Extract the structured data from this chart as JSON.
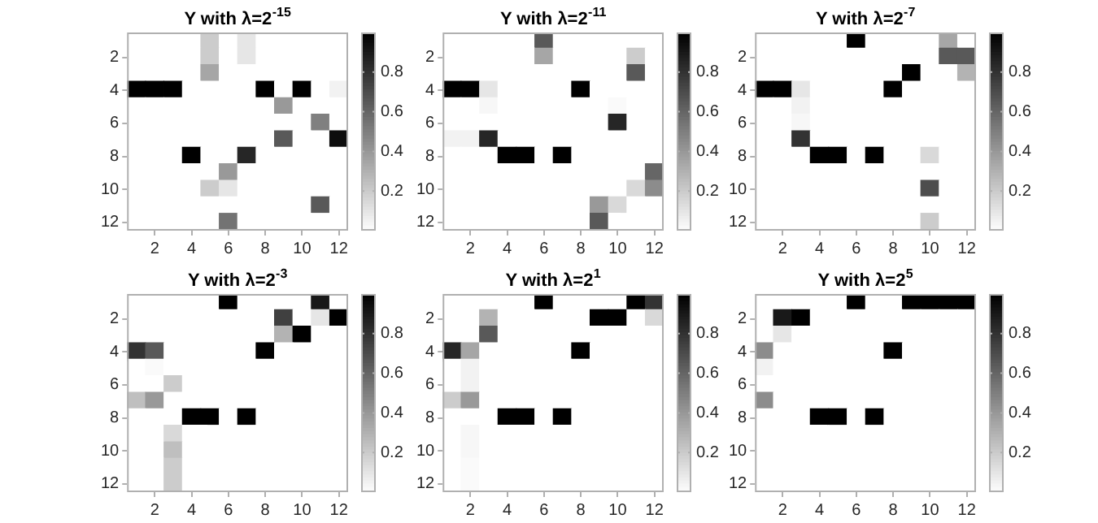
{
  "chart_data": [
    {
      "type": "heatmap",
      "title": "Y with λ=2$^{-15}$",
      "categories": [
        null,
        "2",
        null,
        "4",
        null,
        "6",
        null,
        "8",
        null,
        "10",
        null,
        "12"
      ],
      "y_categories": [
        null,
        "2",
        null,
        "4",
        null,
        "6",
        null,
        "8",
        null,
        "10",
        null,
        "12"
      ],
      "clim": [
        0,
        1
      ],
      "cticks": [
        0.2,
        0.4,
        0.6,
        0.8
      ],
      "cells": [
        [
          0,
          0,
          0,
          0,
          0.2,
          0,
          0.1,
          0,
          0,
          0,
          0,
          0
        ],
        [
          0,
          0,
          0,
          0,
          0.2,
          0,
          0.1,
          0,
          0,
          0,
          0,
          0
        ],
        [
          0,
          0,
          0,
          0,
          0.35,
          0,
          0,
          0,
          0,
          0,
          0,
          0
        ],
        [
          1,
          1,
          1,
          0,
          0,
          0,
          0,
          1,
          0,
          1,
          0,
          0.05
        ],
        [
          0,
          0,
          0,
          0,
          0,
          0,
          0,
          0,
          0.4,
          0,
          0,
          0
        ],
        [
          0,
          0,
          0,
          0,
          0,
          0,
          0,
          0,
          0,
          0,
          0.5,
          0
        ],
        [
          0,
          0,
          0,
          0,
          0,
          0,
          0,
          0,
          0.65,
          0,
          0,
          0.95
        ],
        [
          0,
          0,
          0,
          1,
          0,
          0,
          0.85,
          0,
          0,
          0,
          0,
          0
        ],
        [
          0,
          0,
          0,
          0,
          0,
          0.4,
          0,
          0,
          0,
          0,
          0,
          0
        ],
        [
          0,
          0,
          0,
          0,
          0.2,
          0.1,
          0,
          0,
          0,
          0,
          0,
          0
        ],
        [
          0,
          0,
          0,
          0,
          0,
          0,
          0,
          0,
          0,
          0,
          0.65,
          0
        ],
        [
          0,
          0,
          0,
          0,
          0,
          0.55,
          0,
          0,
          0,
          0,
          0,
          0
        ]
      ]
    },
    {
      "type": "heatmap",
      "title": "Y with λ=2$^{-11}$",
      "categories": [
        null,
        "2",
        null,
        "4",
        null,
        "6",
        null,
        "8",
        null,
        "10",
        null,
        "12"
      ],
      "y_categories": [
        null,
        "2",
        null,
        "4",
        null,
        "6",
        null,
        "8",
        null,
        "10",
        null,
        "12"
      ],
      "clim": [
        0,
        1
      ],
      "cticks": [
        0.2,
        0.4,
        0.6,
        0.8
      ],
      "cells": [
        [
          0,
          0,
          0,
          0,
          0,
          0.65,
          0,
          0,
          0,
          0,
          0,
          0
        ],
        [
          0,
          0,
          0,
          0,
          0,
          0.35,
          0,
          0,
          0,
          0,
          0.2,
          0
        ],
        [
          0,
          0,
          0,
          0,
          0,
          0,
          0,
          0,
          0,
          0,
          0.65,
          0
        ],
        [
          1,
          1,
          0.1,
          0,
          0,
          0,
          0,
          1,
          0,
          0,
          0,
          0
        ],
        [
          0,
          0,
          0.03,
          0,
          0,
          0,
          0,
          0,
          0,
          0.02,
          0,
          0
        ],
        [
          0,
          0,
          0,
          0,
          0,
          0,
          0,
          0,
          0,
          0.85,
          0,
          0
        ],
        [
          0.05,
          0.05,
          0.85,
          0,
          0,
          0,
          0,
          0,
          0,
          0,
          0,
          0
        ],
        [
          0,
          0,
          0,
          1,
          1,
          0,
          1,
          0,
          0,
          0,
          0,
          0
        ],
        [
          0,
          0,
          0,
          0,
          0,
          0,
          0,
          0,
          0,
          0,
          0,
          0.6
        ],
        [
          0,
          0,
          0,
          0,
          0,
          0,
          0,
          0,
          0,
          0,
          0.15,
          0.45
        ],
        [
          0,
          0,
          0,
          0,
          0,
          0,
          0,
          0,
          0.4,
          0.15,
          0,
          0
        ],
        [
          0,
          0,
          0,
          0,
          0,
          0,
          0,
          0,
          0.65,
          0,
          0,
          0
        ]
      ]
    },
    {
      "type": "heatmap",
      "title": "Y with λ=2$^{-7}$",
      "categories": [
        null,
        "2",
        null,
        "4",
        null,
        "6",
        null,
        "8",
        null,
        "10",
        null,
        "12"
      ],
      "y_categories": [
        null,
        "2",
        null,
        "4",
        null,
        "6",
        null,
        "8",
        null,
        "10",
        null,
        "12"
      ],
      "clim": [
        0,
        1
      ],
      "cticks": [
        0.2,
        0.4,
        0.6,
        0.8
      ],
      "cells": [
        [
          0,
          0,
          0,
          0,
          0,
          1,
          0,
          0,
          0,
          0,
          0.35,
          0
        ],
        [
          0,
          0,
          0,
          0,
          0,
          0,
          0,
          0,
          0,
          0,
          0.65,
          0.65
        ],
        [
          0,
          0,
          0,
          0,
          0,
          0,
          0,
          0,
          1,
          0,
          0,
          0.3
        ],
        [
          1,
          1,
          0.1,
          0,
          0,
          0,
          0,
          1,
          0,
          0,
          0,
          0
        ],
        [
          0,
          0,
          0.05,
          0,
          0,
          0,
          0,
          0,
          0,
          0,
          0,
          0
        ],
        [
          0,
          0,
          0.03,
          0,
          0,
          0,
          0,
          0,
          0,
          0,
          0,
          0
        ],
        [
          0,
          0,
          0.8,
          0,
          0,
          0,
          0,
          0,
          0,
          0,
          0,
          0
        ],
        [
          0,
          0,
          0,
          1,
          1,
          0,
          1,
          0,
          0,
          0.15,
          0,
          0
        ],
        [
          0,
          0,
          0,
          0,
          0,
          0,
          0,
          0,
          0,
          0,
          0,
          0
        ],
        [
          0,
          0,
          0,
          0,
          0,
          0,
          0,
          0,
          0,
          0.7,
          0,
          0
        ],
        [
          0,
          0,
          0,
          0,
          0,
          0,
          0,
          0,
          0,
          0,
          0,
          0
        ],
        [
          0,
          0,
          0,
          0,
          0,
          0,
          0,
          0,
          0,
          0.2,
          0,
          0
        ]
      ]
    },
    {
      "type": "heatmap",
      "title": "Y with λ=2$^{-3}$",
      "categories": [
        null,
        "2",
        null,
        "4",
        null,
        "6",
        null,
        "8",
        null,
        "10",
        null,
        "12"
      ],
      "y_categories": [
        null,
        "2",
        null,
        "4",
        null,
        "6",
        null,
        "8",
        null,
        "10",
        null,
        "12"
      ],
      "clim": [
        0,
        1
      ],
      "cticks": [
        0.2,
        0.4,
        0.6,
        0.8
      ],
      "cells": [
        [
          0,
          0,
          0,
          0,
          0,
          1,
          0,
          0,
          0,
          0,
          0.9,
          0
        ],
        [
          0,
          0,
          0,
          0,
          0,
          0,
          0,
          0,
          0.75,
          0,
          0.1,
          1
        ],
        [
          0,
          0,
          0,
          0,
          0,
          0,
          0,
          0,
          0.3,
          1,
          0,
          0
        ],
        [
          0.8,
          0.65,
          0,
          0,
          0,
          0,
          0,
          1,
          0,
          0,
          0,
          0
        ],
        [
          0,
          0.02,
          0,
          0,
          0,
          0,
          0,
          0,
          0,
          0,
          0,
          0
        ],
        [
          0,
          0,
          0.2,
          0,
          0,
          0,
          0,
          0,
          0,
          0,
          0,
          0
        ],
        [
          0.25,
          0.4,
          0,
          0,
          0,
          0,
          0,
          0,
          0,
          0,
          0,
          0
        ],
        [
          0,
          0,
          0,
          1,
          1,
          0,
          1,
          0,
          0,
          0,
          0,
          0
        ],
        [
          0,
          0,
          0.15,
          0,
          0,
          0,
          0,
          0,
          0,
          0,
          0,
          0
        ],
        [
          0,
          0,
          0.25,
          0,
          0,
          0,
          0,
          0,
          0,
          0,
          0,
          0
        ],
        [
          0,
          0,
          0.2,
          0,
          0,
          0,
          0,
          0,
          0,
          0,
          0,
          0
        ],
        [
          0,
          0,
          0.2,
          0,
          0,
          0,
          0,
          0,
          0,
          0,
          0,
          0
        ]
      ]
    },
    {
      "type": "heatmap",
      "title": "Y with λ=2$^{1}$",
      "categories": [
        null,
        "2",
        null,
        "4",
        null,
        "6",
        null,
        "8",
        null,
        "10",
        null,
        "12"
      ],
      "y_categories": [
        null,
        "2",
        null,
        "4",
        null,
        "6",
        null,
        "8",
        null,
        "10",
        null,
        "12"
      ],
      "clim": [
        0,
        1
      ],
      "cticks": [
        0.2,
        0.4,
        0.6,
        0.8
      ],
      "cells": [
        [
          0,
          0,
          0,
          0,
          0,
          1,
          0,
          0,
          0,
          0,
          1,
          0.8
        ],
        [
          0,
          0,
          0.3,
          0,
          0,
          0,
          0,
          0,
          1,
          1,
          0,
          0.15
        ],
        [
          0,
          0,
          0.65,
          0,
          0,
          0,
          0,
          0,
          0,
          0,
          0,
          0
        ],
        [
          0.85,
          0.35,
          0,
          0,
          0,
          0,
          0,
          1,
          0,
          0,
          0,
          0
        ],
        [
          0,
          0.05,
          0,
          0,
          0,
          0,
          0,
          0,
          0,
          0,
          0,
          0
        ],
        [
          0,
          0.05,
          0,
          0,
          0,
          0,
          0,
          0,
          0,
          0,
          0,
          0
        ],
        [
          0.2,
          0.4,
          0,
          0,
          0,
          0,
          0,
          0,
          0,
          0,
          0,
          0
        ],
        [
          0,
          0,
          0,
          1,
          1,
          0,
          1,
          0,
          0,
          0,
          0,
          0
        ],
        [
          0,
          0.03,
          0,
          0,
          0,
          0,
          0,
          0,
          0,
          0,
          0,
          0
        ],
        [
          0,
          0.03,
          0,
          0,
          0,
          0,
          0,
          0,
          0,
          0,
          0,
          0
        ],
        [
          0,
          0.02,
          0,
          0,
          0,
          0,
          0,
          0,
          0,
          0,
          0,
          0
        ],
        [
          0,
          0.02,
          0,
          0,
          0,
          0,
          0,
          0,
          0,
          0,
          0,
          0
        ]
      ]
    },
    {
      "type": "heatmap",
      "title": "Y with λ=2$^{5}$",
      "categories": [
        null,
        "2",
        null,
        "4",
        null,
        "6",
        null,
        "8",
        null,
        "10",
        null,
        "12"
      ],
      "y_categories": [
        null,
        "2",
        null,
        "4",
        null,
        "6",
        null,
        "8",
        null,
        "10",
        null,
        "12"
      ],
      "clim": [
        0,
        1
      ],
      "cticks": [
        0.2,
        0.4,
        0.6,
        0.8
      ],
      "cells": [
        [
          0,
          0,
          0,
          0,
          0,
          1,
          0,
          0,
          1,
          1,
          1,
          1
        ],
        [
          0,
          0.9,
          1,
          0,
          0,
          0,
          0,
          0,
          0,
          0,
          0,
          0
        ],
        [
          0,
          0.1,
          0,
          0,
          0,
          0,
          0,
          0,
          0,
          0,
          0,
          0
        ],
        [
          0.45,
          0,
          0,
          0,
          0,
          0,
          0,
          1,
          0,
          0,
          0,
          0
        ],
        [
          0.05,
          0,
          0,
          0,
          0,
          0,
          0,
          0,
          0,
          0,
          0,
          0
        ],
        [
          0,
          0,
          0,
          0,
          0,
          0,
          0,
          0,
          0,
          0,
          0,
          0
        ],
        [
          0.45,
          0,
          0,
          0,
          0,
          0,
          0,
          0,
          0,
          0,
          0,
          0
        ],
        [
          0,
          0,
          0,
          1,
          1,
          0,
          1,
          0,
          0,
          0,
          0,
          0
        ],
        [
          0,
          0,
          0,
          0,
          0,
          0,
          0,
          0,
          0,
          0,
          0,
          0
        ],
        [
          0,
          0,
          0,
          0,
          0,
          0,
          0,
          0,
          0,
          0,
          0,
          0
        ],
        [
          0,
          0,
          0,
          0,
          0,
          0,
          0,
          0,
          0,
          0,
          0,
          0
        ],
        [
          0,
          0,
          0,
          0,
          0,
          0,
          0,
          0,
          0,
          0,
          0,
          0
        ]
      ]
    }
  ]
}
